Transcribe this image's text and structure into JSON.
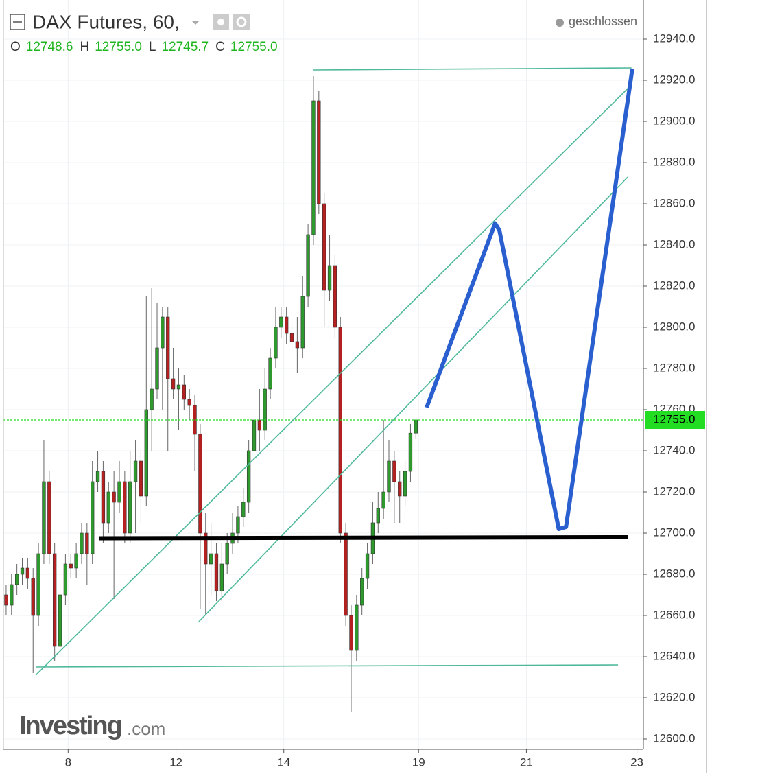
{
  "chart_data": {
    "type": "candlestick",
    "title": "DAX Futures, 60,",
    "status": "geschlossen",
    "ohlc": [
      {
        "key": "O",
        "value": 12748.6,
        "label": "12748.6"
      },
      {
        "key": "H",
        "value": 12755,
        "label": "12755.0"
      },
      {
        "key": "L",
        "value": 12745.7,
        "label": "12745.7"
      },
      {
        "key": "C",
        "value": 12755,
        "label": "12755.0"
      }
    ],
    "brand": "Investing",
    "brand_suffix": ".com",
    "up_color": "#2e9a2e",
    "down_color": "#b52020",
    "grid": true,
    "xlim": [
      0,
      237.4
    ],
    "ylim": [
      12595,
      12959
    ],
    "xticks": [
      {
        "value": 24,
        "label": "8"
      },
      {
        "value": 64,
        "label": "12"
      },
      {
        "value": 104,
        "label": "14"
      },
      {
        "value": 154,
        "label": "19"
      },
      {
        "value": 194,
        "label": "21"
      },
      {
        "value": 235,
        "label": "23"
      }
    ],
    "yticks": [
      {
        "value": 12600,
        "label": "12600.0"
      },
      {
        "value": 12620,
        "label": "12620.0"
      },
      {
        "value": 12640,
        "label": "12640.0"
      },
      {
        "value": 12660,
        "label": "12660.0"
      },
      {
        "value": 12680,
        "label": "12680.0"
      },
      {
        "value": 12700,
        "label": "12700.0"
      },
      {
        "value": 12720,
        "label": "12720.0"
      },
      {
        "value": 12740,
        "label": "12740.0"
      },
      {
        "value": 12760,
        "label": "12760.0"
      },
      {
        "value": 12780,
        "label": "12780.0"
      },
      {
        "value": 12800,
        "label": "12800.0"
      },
      {
        "value": 12820,
        "label": "12820.0"
      },
      {
        "value": 12840,
        "label": "12840.0"
      },
      {
        "value": 12860,
        "label": "12860.0"
      },
      {
        "value": 12880,
        "label": "12880.0"
      },
      {
        "value": 12900,
        "label": "12900.0"
      },
      {
        "value": 12920,
        "label": "12920.0"
      },
      {
        "value": 12940,
        "label": "12940.0"
      }
    ],
    "last_price": {
      "value": 12755,
      "label": "12755.0",
      "color": "#22dd22"
    },
    "x": [
      1,
      3,
      5,
      7,
      9,
      11,
      13,
      15,
      17,
      19,
      21,
      23,
      25,
      27,
      29,
      31,
      33,
      35,
      37,
      39,
      41,
      43,
      45,
      47,
      49,
      51,
      53,
      55,
      57,
      59,
      61,
      63,
      65,
      67,
      69,
      71,
      73,
      75,
      77,
      79,
      81,
      83,
      85,
      87,
      89,
      91,
      93,
      95,
      97,
      99,
      101,
      103,
      105,
      107,
      109,
      111,
      113,
      115,
      117,
      119,
      121,
      123,
      125,
      127,
      129,
      131,
      133,
      135,
      137,
      139,
      141,
      143,
      145,
      147,
      149,
      151,
      153
    ],
    "open": [
      12670,
      12665,
      12675,
      12680,
      12683,
      12678,
      12660,
      12690,
      12725,
      12690,
      12645,
      12670,
      12685,
      12683,
      12690,
      12700,
      12690,
      12725,
      12730,
      12705,
      12720,
      12715,
      12725,
      12700,
      12725,
      12735,
      12718,
      12760,
      12770,
      12790,
      12805,
      12775,
      12770,
      12772,
      12765,
      12762,
      12748,
      12700,
      12685,
      12690,
      12672,
      12685,
      12695,
      12700,
      12708,
      12715,
      12740,
      12755,
      12750,
      12770,
      12785,
      12800,
      12805,
      12797,
      12793,
      12790,
      12815,
      12845,
      12910,
      12860,
      12818,
      12830,
      12800,
      12700,
      12660,
      12643,
      12665,
      12678,
      12690,
      12705,
      12712,
      12720,
      12735,
      12725,
      12718,
      12730,
      12748.6
    ],
    "high": [
      12675,
      12680,
      12685,
      12688,
      12688,
      12683,
      12695,
      12745,
      12730,
      12695,
      12675,
      12690,
      12690,
      12695,
      12705,
      12705,
      12735,
      12740,
      12735,
      12725,
      12730,
      12735,
      12730,
      12740,
      12745,
      12740,
      12815,
      12819,
      12812,
      12810,
      12810,
      12790,
      12780,
      12777,
      12770,
      12767,
      12753,
      12710,
      12705,
      12695,
      12695,
      12700,
      12710,
      12713,
      12722,
      12745,
      12765,
      12770,
      12780,
      12790,
      12810,
      12810,
      12810,
      12802,
      12805,
      12825,
      12850,
      12922,
      12915,
      12865,
      12845,
      12835,
      12805,
      12705,
      12665,
      12670,
      12683,
      12695,
      12715,
      12720,
      12755,
      12745,
      12740,
      12730,
      12735,
      12753,
      12755
    ],
    "low": [
      12660,
      12660,
      12670,
      12675,
      12673,
      12632,
      12655,
      12685,
      12685,
      12638,
      12640,
      12665,
      12678,
      12678,
      12685,
      12675,
      12685,
      12720,
      12695,
      12700,
      12668,
      12710,
      12695,
      12695,
      12700,
      12705,
      12713,
      12740,
      12765,
      12760,
      12740,
      12765,
      12750,
      12760,
      12755,
      12730,
      12663,
      12660,
      12670,
      12667,
      12667,
      12680,
      12690,
      12695,
      12703,
      12710,
      12735,
      12740,
      12745,
      12765,
      12780,
      12795,
      12792,
      12788,
      12778,
      12785,
      12810,
      12840,
      12855,
      12800,
      12813,
      12795,
      12695,
      12655,
      12613,
      12638,
      12660,
      12673,
      12685,
      12700,
      12707,
      12715,
      12705,
      12705,
      12713,
      12725,
      12745.7
    ],
    "close": [
      12665,
      12675,
      12680,
      12683,
      12678,
      12660,
      12690,
      12725,
      12690,
      12645,
      12670,
      12685,
      12683,
      12690,
      12700,
      12690,
      12725,
      12730,
      12705,
      12720,
      12715,
      12725,
      12700,
      12725,
      12735,
      12718,
      12760,
      12770,
      12790,
      12805,
      12775,
      12770,
      12772,
      12765,
      12762,
      12748,
      12700,
      12685,
      12690,
      12672,
      12685,
      12695,
      12700,
      12708,
      12715,
      12740,
      12755,
      12750,
      12770,
      12785,
      12800,
      12805,
      12797,
      12793,
      12790,
      12815,
      12845,
      12910,
      12860,
      12818,
      12830,
      12800,
      12700,
      12660,
      12643,
      12665,
      12678,
      12690,
      12705,
      12712,
      12720,
      12735,
      12725,
      12718,
      12730,
      12748.6,
      12755
    ],
    "drawings": [
      {
        "color": "#4db89a",
        "width": 1.6,
        "points": [
          [
            115,
            12925
          ],
          [
            233,
            12926
          ]
        ]
      },
      {
        "color": "#4db89a",
        "width": 1.6,
        "points": [
          [
            12,
            12635
          ],
          [
            228,
            12636
          ]
        ]
      },
      {
        "color": "#4db89a",
        "width": 1.6,
        "points": [
          [
            12,
            12631
          ],
          [
            231.6,
            12916
          ]
        ]
      },
      {
        "color": "#4db89a",
        "width": 1.6,
        "points": [
          [
            72.5,
            12657
          ],
          [
            231.6,
            12873
          ]
        ]
      },
      {
        "color": "#000000",
        "width": 6,
        "points": [
          [
            35.6,
            12697.5
          ],
          [
            231.6,
            12698
          ]
        ]
      },
      {
        "color": "#2a5fcf",
        "width": 6,
        "points": [
          [
            157,
            12761
          ],
          [
            182.4,
            12850.5
          ],
          [
            184,
            12847
          ],
          [
            206,
            12702
          ],
          [
            208.7,
            12703
          ],
          [
            233.3,
            12925.6
          ]
        ]
      }
    ]
  }
}
